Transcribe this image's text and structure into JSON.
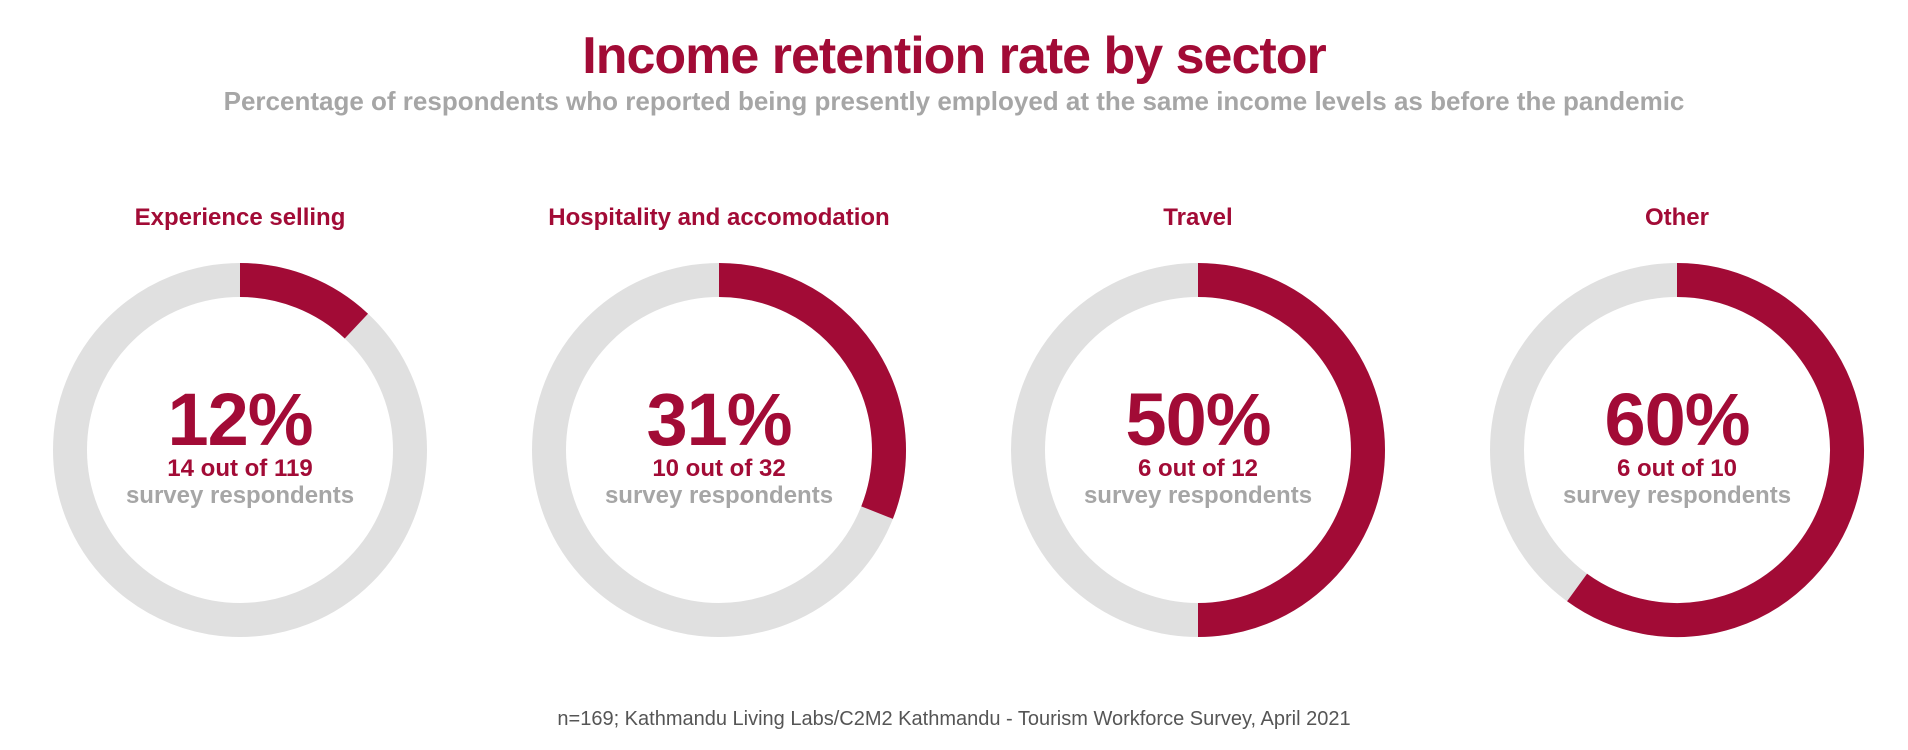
{
  "colors": {
    "accent": "#a20b36",
    "track": "#e0e0e0",
    "muted": "#a6a6a6",
    "note": "#555555"
  },
  "chart_data": {
    "type": "pie",
    "title": "Income retention rate by sector",
    "subtitle": "Percentage of respondents who reported being presently employed at the same income levels as before the pandemic",
    "note": "n=169; Kathmandu Living Labs/C2M2 Kathmandu - Tourism Workforce Survey, April 2021",
    "panels": [
      {
        "label": "Experience selling",
        "value": 12,
        "value_label": "12%",
        "count_label": "14 out of 119",
        "desc_label": "survey respondents"
      },
      {
        "label": "Hospitality and accomodation",
        "value": 31,
        "value_label": "31%",
        "count_label": "10 out of 32",
        "desc_label": "survey respondents"
      },
      {
        "label": "Travel",
        "value": 50,
        "value_label": "50%",
        "count_label": "6 out of 12",
        "desc_label": "survey respondents"
      },
      {
        "label": "Other",
        "value": 60,
        "value_label": "60%",
        "count_label": "6 out of 10",
        "desc_label": "survey respondents"
      }
    ]
  }
}
